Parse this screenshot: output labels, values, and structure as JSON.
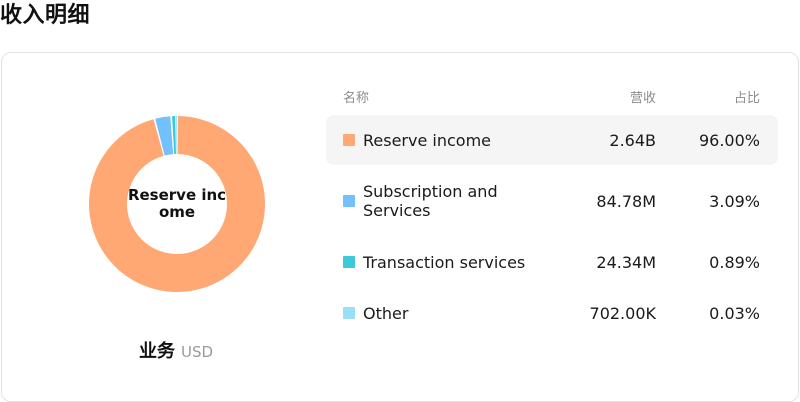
{
  "header": {
    "title": "收入明细"
  },
  "chart": {
    "center_label": "Reserve income",
    "footer_label": "业务",
    "footer_unit": "USD"
  },
  "table": {
    "headers": {
      "name": "名称",
      "revenue": "营收",
      "share": "占比"
    },
    "rows": [
      {
        "name": "Reserve income",
        "revenue": "2.64B",
        "share": "96.00%",
        "color": "#FFA874"
      },
      {
        "name": "Subscription and Services",
        "revenue": "84.78M",
        "share": "3.09%",
        "color": "#74C0FC"
      },
      {
        "name": "Transaction services",
        "revenue": "24.34M",
        "share": "0.89%",
        "color": "#3BC9DB"
      },
      {
        "name": "Other",
        "revenue": "702.00K",
        "share": "0.03%",
        "color": "#99E0F5"
      }
    ]
  },
  "chart_data": {
    "type": "pie",
    "categories": [
      "Reserve income",
      "Subscription and Services",
      "Transaction services",
      "Other"
    ],
    "values": [
      96.0,
      3.09,
      0.89,
      0.03
    ],
    "colors": [
      "#FFA874",
      "#74C0FC",
      "#3BC9DB",
      "#99E0F5"
    ],
    "title": "",
    "donut": true
  }
}
